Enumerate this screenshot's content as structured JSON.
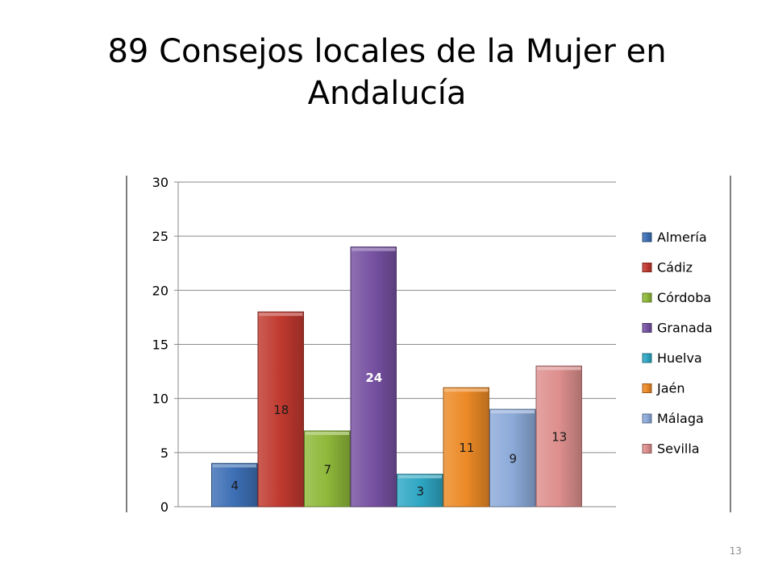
{
  "slide": {
    "title": "89 Consejos locales de la Mujer en Andalucía",
    "page_number": "13"
  },
  "chart_data": {
    "type": "bar",
    "title": "",
    "xlabel": "",
    "ylabel": "",
    "categories": [
      "Almería",
      "Cádiz",
      "Córdoba",
      "Granada",
      "Huelva",
      "Jaén",
      "Málaga",
      "Sevilla"
    ],
    "values": [
      4,
      18,
      7,
      24,
      3,
      11,
      9,
      13
    ],
    "colors": [
      "#3d6fb5",
      "#c0392f",
      "#8fb83a",
      "#7651a1",
      "#2fa7c4",
      "#ec8a26",
      "#8caad9",
      "#dd8f8d"
    ],
    "ylim": [
      0,
      30
    ],
    "yticks": [
      "0",
      "5",
      "10",
      "15",
      "20",
      "25",
      "30"
    ],
    "grid": true,
    "legend": "right",
    "data_labels": [
      "4",
      "18",
      "7",
      "24",
      "3",
      "11",
      "9",
      "13"
    ]
  }
}
